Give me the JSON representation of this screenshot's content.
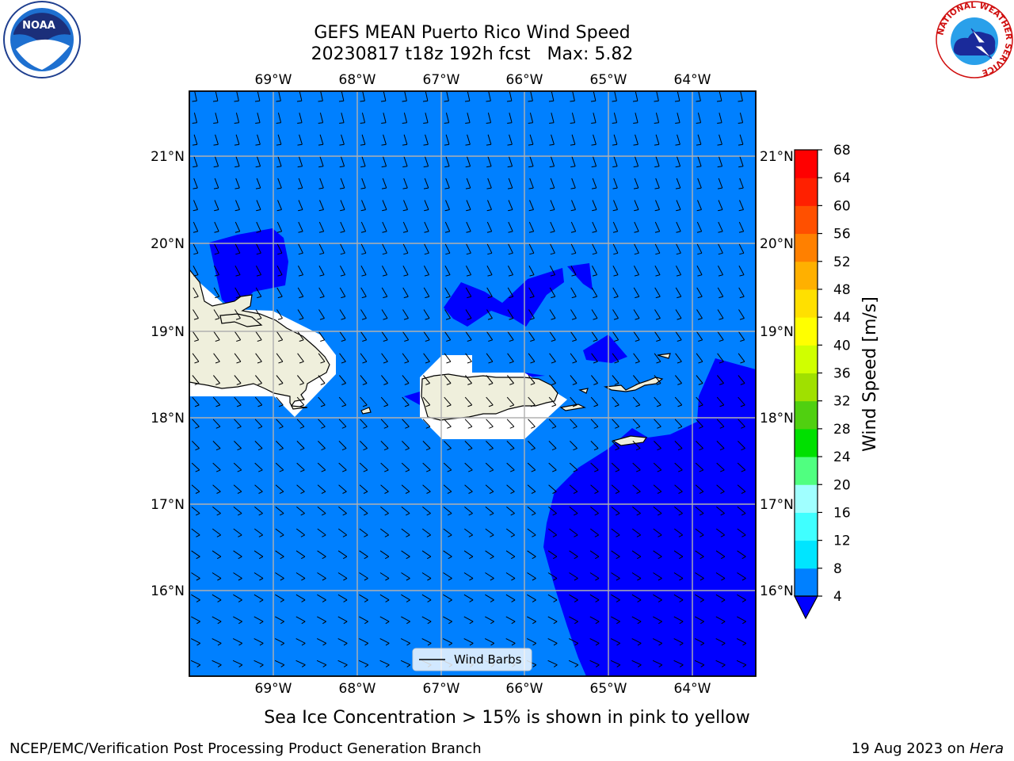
{
  "title": {
    "line1": "GEFS MEAN Puerto Rico Wind Speed",
    "line2": "20230817 t18z 192h fcst   Max: 5.82"
  },
  "logos": {
    "noaa_label": "NOAA",
    "nws_ring_text": "NATIONAL WEATHER SERVICE"
  },
  "map": {
    "lon_labels": [
      "69°W",
      "68°W",
      "67°W",
      "66°W",
      "65°W",
      "64°W"
    ],
    "lat_labels": [
      "21°N",
      "20°N",
      "19°N",
      "18°N",
      "17°N",
      "16°N"
    ],
    "extent": {
      "lon_min": -70.0,
      "lon_max": -63.25,
      "lat_min": 15.0,
      "lat_max": 21.75
    },
    "legend_label": "Wind Barbs",
    "colors": {
      "band_4_8": "#0080ff",
      "band_below_4": "#0000ff",
      "land": "#efefdc",
      "no_data": "#ffffff"
    }
  },
  "colorbar": {
    "label": "Wind Speed [m/s]",
    "ticks": [
      "68",
      "64",
      "60",
      "56",
      "52",
      "48",
      "44",
      "40",
      "36",
      "32",
      "28",
      "24",
      "20",
      "16",
      "12",
      "8",
      "4"
    ],
    "levels": [
      4,
      8,
      12,
      16,
      20,
      24,
      28,
      32,
      36,
      40,
      44,
      48,
      52,
      56,
      60,
      64,
      68
    ],
    "colors": [
      "#0080ff",
      "#00e5ff",
      "#40ffff",
      "#a0ffff",
      "#50ff80",
      "#00e000",
      "#50d010",
      "#a0e000",
      "#d0ff00",
      "#ffff00",
      "#ffe000",
      "#ffb000",
      "#ff8000",
      "#ff5000",
      "#ff2000",
      "#ff0000"
    ],
    "under_color": "#0000ff"
  },
  "footer": {
    "note": "Sea Ice Concentration > 15% is shown in pink to yellow",
    "left": "NCEP/EMC/Verification Post Processing Product Generation Branch",
    "date": "19 Aug 2023 on ",
    "machine": "Hera"
  }
}
